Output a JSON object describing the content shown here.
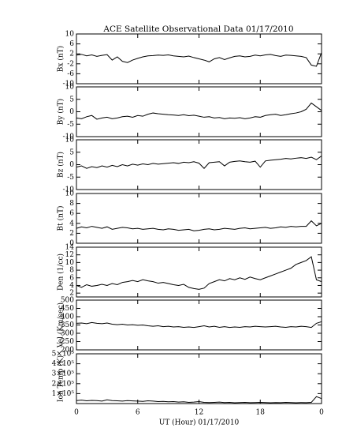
{
  "chart_data": [
    {
      "type": "line",
      "title": "ACE Satellite Observational Data   01/17/2010",
      "ylabel": "Bx (nT)",
      "color": "#000000",
      "xlim": [
        0,
        24
      ],
      "ylim": [
        -10,
        10
      ],
      "yticks": [
        -10,
        -6,
        -2,
        2,
        6,
        10
      ],
      "x": [
        0,
        0.5,
        1,
        1.5,
        2,
        2.5,
        3,
        3.5,
        4,
        4.5,
        5,
        5.5,
        6,
        6.5,
        7,
        7.5,
        8,
        8.5,
        9,
        9.5,
        10,
        10.5,
        11,
        11.5,
        12,
        12.5,
        13,
        13.5,
        14,
        14.5,
        15,
        15.5,
        16,
        16.5,
        17,
        17.5,
        18,
        18.5,
        19,
        19.5,
        20,
        20.5,
        21,
        21.5,
        22,
        22.5,
        23,
        23.5,
        24
      ],
      "values": [
        1.5,
        1.8,
        1.2,
        1.6,
        1.0,
        1.4,
        1.7,
        -0.5,
        0.8,
        -1.0,
        -1.5,
        -0.5,
        0.2,
        0.8,
        1.2,
        1.3,
        1.5,
        1.4,
        1.6,
        1.2,
        1.0,
        0.8,
        1.1,
        0.5,
        0.0,
        -0.5,
        -1.2,
        0.0,
        0.5,
        -0.3,
        0.4,
        1.0,
        1.2,
        0.8,
        1.0,
        1.5,
        1.2,
        1.6,
        1.8,
        1.3,
        1.0,
        1.5,
        1.4,
        1.2,
        1.0,
        0.5,
        -2.5,
        -3.0,
        2.5
      ]
    },
    {
      "type": "line",
      "ylabel": "By (nT)",
      "color": "#000000",
      "xlim": [
        0,
        24
      ],
      "ylim": [
        -10,
        10
      ],
      "yticks": [
        -10,
        -5,
        0,
        5,
        10
      ],
      "x": [
        0,
        0.5,
        1,
        1.5,
        2,
        2.5,
        3,
        3.5,
        4,
        4.5,
        5,
        5.5,
        6,
        6.5,
        7,
        7.5,
        8,
        8.5,
        9,
        9.5,
        10,
        10.5,
        11,
        11.5,
        12,
        12.5,
        13,
        13.5,
        14,
        14.5,
        15,
        15.5,
        16,
        16.5,
        17,
        17.5,
        18,
        18.5,
        19,
        19.5,
        20,
        20.5,
        21,
        21.5,
        22,
        22.5,
        23,
        23.5,
        24
      ],
      "values": [
        -2.5,
        -2.8,
        -2.0,
        -1.5,
        -3.0,
        -2.5,
        -2.2,
        -2.8,
        -2.5,
        -2.0,
        -1.8,
        -2.2,
        -1.5,
        -1.8,
        -1.0,
        -0.5,
        -0.8,
        -1.0,
        -1.2,
        -1.3,
        -1.5,
        -1.2,
        -1.6,
        -1.4,
        -1.8,
        -2.2,
        -2.0,
        -2.5,
        -2.3,
        -2.8,
        -2.5,
        -2.6,
        -2.4,
        -2.8,
        -2.5,
        -2.0,
        -2.2,
        -1.5,
        -1.2,
        -1.0,
        -1.5,
        -1.2,
        -0.8,
        -0.5,
        0.0,
        1.0,
        3.5,
        2.0,
        0.5
      ]
    },
    {
      "type": "line",
      "ylabel": "Bz (nT)",
      "color": "#000000",
      "xlim": [
        0,
        24
      ],
      "ylim": [
        -10,
        10
      ],
      "yticks": [
        -10,
        -5,
        0,
        5,
        10
      ],
      "x": [
        0,
        0.5,
        1,
        1.5,
        2,
        2.5,
        3,
        3.5,
        4,
        4.5,
        5,
        5.5,
        6,
        6.5,
        7,
        7.5,
        8,
        8.5,
        9,
        9.5,
        10,
        10.5,
        11,
        11.5,
        12,
        12.5,
        13,
        13.5,
        14,
        14.5,
        15,
        15.5,
        16,
        16.5,
        17,
        17.5,
        18,
        18.5,
        19,
        19.5,
        20,
        20.5,
        21,
        21.5,
        22,
        22.5,
        23,
        23.5,
        24
      ],
      "values": [
        -1.0,
        -0.5,
        -1.5,
        -0.8,
        -1.2,
        -0.5,
        -1.0,
        -0.3,
        -0.8,
        0.0,
        -0.5,
        0.2,
        -0.2,
        0.3,
        0.0,
        0.5,
        0.2,
        0.4,
        0.6,
        0.8,
        0.5,
        1.0,
        0.8,
        1.2,
        0.6,
        -1.5,
        0.8,
        1.0,
        1.2,
        -0.5,
        1.0,
        1.3,
        1.5,
        1.2,
        1.0,
        1.4,
        -1.0,
        1.5,
        1.8,
        2.0,
        2.2,
        2.5,
        2.3,
        2.6,
        2.8,
        2.5,
        3.0,
        2.0,
        3.5
      ]
    },
    {
      "type": "line",
      "ylabel": "Bt (nT)",
      "color": "#000000",
      "xlim": [
        0,
        24
      ],
      "ylim": [
        0,
        10
      ],
      "yticks": [
        0,
        2,
        4,
        6,
        8,
        10
      ],
      "x": [
        0,
        0.5,
        1,
        1.5,
        2,
        2.5,
        3,
        3.5,
        4,
        4.5,
        5,
        5.5,
        6,
        6.5,
        7,
        7.5,
        8,
        8.5,
        9,
        9.5,
        10,
        10.5,
        11,
        11.5,
        12,
        12.5,
        13,
        13.5,
        14,
        14.5,
        15,
        15.5,
        16,
        16.5,
        17,
        17.5,
        18,
        18.5,
        19,
        19.5,
        20,
        20.5,
        21,
        21.5,
        22,
        22.5,
        23,
        23.5,
        24
      ],
      "values": [
        3.0,
        3.3,
        3.1,
        3.4,
        3.2,
        3.0,
        3.3,
        2.8,
        3.0,
        3.2,
        3.1,
        2.9,
        3.0,
        2.8,
        2.9,
        3.0,
        2.8,
        2.7,
        2.9,
        2.8,
        2.6,
        2.7,
        2.8,
        2.5,
        2.6,
        2.8,
        2.9,
        2.7,
        2.8,
        3.0,
        2.9,
        2.8,
        3.0,
        3.1,
        2.9,
        3.0,
        3.1,
        3.2,
        3.0,
        3.1,
        3.3,
        3.2,
        3.4,
        3.3,
        3.4,
        3.4,
        4.5,
        3.5,
        4.0
      ]
    },
    {
      "type": "line",
      "ylabel": "Den (1/cc)",
      "color": "#000000",
      "xlim": [
        0,
        24
      ],
      "ylim": [
        1,
        14
      ],
      "yticks": [
        2,
        4,
        6,
        8,
        10,
        12,
        14
      ],
      "x": [
        0,
        0.5,
        1,
        1.5,
        2,
        2.5,
        3,
        3.5,
        4,
        4.5,
        5,
        5.5,
        6,
        6.5,
        7,
        7.5,
        8,
        8.5,
        9,
        9.5,
        10,
        10.5,
        11,
        11.5,
        12,
        12.5,
        13,
        13.5,
        14,
        14.5,
        15,
        15.5,
        16,
        16.5,
        17,
        17.5,
        18,
        18.5,
        19,
        19.5,
        20,
        20.5,
        21,
        21.5,
        22,
        22.5,
        23,
        23.5,
        24
      ],
      "values": [
        4.0,
        3.5,
        4.2,
        3.8,
        4.0,
        4.3,
        4.0,
        4.5,
        4.2,
        4.8,
        5.0,
        5.3,
        5.0,
        5.5,
        5.2,
        5.0,
        4.6,
        4.8,
        4.5,
        4.2,
        4.0,
        4.3,
        3.5,
        3.2,
        3.0,
        3.3,
        4.5,
        5.0,
        5.5,
        5.2,
        5.8,
        5.5,
        6.0,
        5.6,
        6.2,
        5.8,
        5.5,
        6.0,
        6.5,
        7.0,
        7.5,
        8.0,
        8.5,
        9.5,
        10.0,
        10.5,
        11.5,
        5.5,
        5.0
      ]
    },
    {
      "type": "line",
      "ylabel": "Vel (Km/sec)",
      "color": "#000000",
      "xlim": [
        0,
        24
      ],
      "ylim": [
        200,
        500
      ],
      "yticks": [
        200,
        250,
        300,
        350,
        400,
        450,
        500
      ],
      "x": [
        0,
        0.5,
        1,
        1.5,
        2,
        2.5,
        3,
        3.5,
        4,
        4.5,
        5,
        5.5,
        6,
        6.5,
        7,
        7.5,
        8,
        8.5,
        9,
        9.5,
        10,
        10.5,
        11,
        11.5,
        12,
        12.5,
        13,
        13.5,
        14,
        14.5,
        15,
        15.5,
        16,
        16.5,
        17,
        17.5,
        18,
        18.5,
        19,
        19.5,
        20,
        20.5,
        21,
        21.5,
        22,
        22.5,
        23,
        23.5,
        24
      ],
      "values": [
        360,
        362,
        358,
        365,
        360,
        358,
        362,
        355,
        352,
        355,
        350,
        352,
        348,
        350,
        345,
        342,
        345,
        340,
        342,
        338,
        340,
        336,
        338,
        335,
        340,
        345,
        338,
        342,
        336,
        340,
        335,
        338,
        336,
        340,
        338,
        342,
        340,
        338,
        340,
        342,
        338,
        336,
        340,
        338,
        342,
        340,
        335,
        360,
        370
      ]
    },
    {
      "type": "line",
      "ylabel": "Ion Temp (K)",
      "xlabel": "UT (Hour)   01/17/2010",
      "color": "#000000",
      "xlim": [
        0,
        24
      ],
      "ylim": [
        0,
        500000
      ],
      "yticks": [
        {
          "value": 100000,
          "label": "1×10⁵"
        },
        {
          "value": 200000,
          "label": "2×10⁵"
        },
        {
          "value": 300000,
          "label": "3×10⁵"
        },
        {
          "value": 400000,
          "label": "4×10⁵"
        },
        {
          "value": 500000,
          "label": "5×10⁵"
        }
      ],
      "xticks": [
        0,
        6,
        12,
        18,
        {
          "value": 24,
          "label": "0"
        }
      ],
      "x": [
        0,
        0.5,
        1,
        1.5,
        2,
        2.5,
        3,
        3.5,
        4,
        4.5,
        5,
        5.5,
        6,
        6.5,
        7,
        7.5,
        8,
        8.5,
        9,
        9.5,
        10,
        10.5,
        11,
        11.5,
        12,
        12.5,
        13,
        13.5,
        14,
        14.5,
        15,
        15.5,
        16,
        16.5,
        17,
        17.5,
        18,
        18.5,
        19,
        19.5,
        20,
        20.5,
        21,
        21.5,
        22,
        22.5,
        23,
        23.5,
        24
      ],
      "values": [
        30000,
        35000,
        28000,
        32000,
        30000,
        25000,
        38000,
        30000,
        28000,
        25000,
        30000,
        27000,
        25000,
        22000,
        28000,
        25000,
        20000,
        22000,
        18000,
        20000,
        15000,
        18000,
        12000,
        15000,
        20000,
        12000,
        10000,
        12000,
        15000,
        10000,
        12000,
        8000,
        10000,
        12000,
        9000,
        10000,
        12000,
        10000,
        8000,
        10000,
        9000,
        12000,
        10000,
        8000,
        10000,
        9000,
        12000,
        70000,
        50000
      ]
    }
  ]
}
